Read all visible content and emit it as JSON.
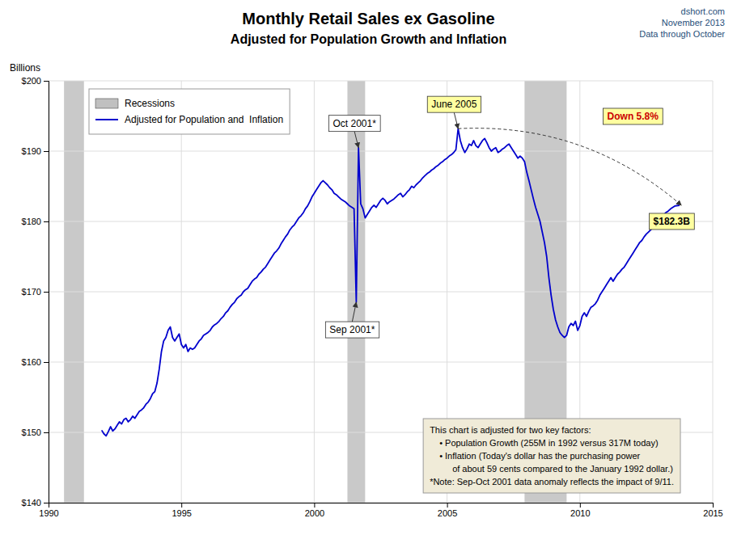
{
  "chart_data": {
    "type": "line",
    "title": "Monthly Retail Sales ex Gasoline",
    "subtitle": "Adjusted for Population Growth and Inflation",
    "y_label": "Billions",
    "source": [
      "dshort.com",
      "November 2013",
      "Data through October"
    ],
    "xlim": [
      1990,
      2015
    ],
    "ylim": [
      140,
      200
    ],
    "xticks": [
      1990,
      1995,
      2000,
      2005,
      2010,
      2015
    ],
    "yticks": [
      {
        "value": 140,
        "label": "$140"
      },
      {
        "value": 150,
        "label": "$150"
      },
      {
        "value": 160,
        "label": "$160"
      },
      {
        "value": 170,
        "label": "$170"
      },
      {
        "value": 180,
        "label": "$180"
      },
      {
        "value": 190,
        "label": "$190"
      },
      {
        "value": 200,
        "label": "$200"
      }
    ],
    "grid": true,
    "legend": "upper left",
    "recessions": {
      "name": "Recessions",
      "color": "#C0C0C0",
      "ranges": [
        [
          1990.583,
          1991.333
        ],
        [
          2001.25,
          2001.917
        ],
        [
          2007.917,
          2009.5
        ]
      ]
    },
    "x": [
      1992.0,
      1992.083,
      1992.167,
      1992.25,
      1992.333,
      1992.417,
      1992.5,
      1992.583,
      1992.667,
      1992.75,
      1992.833,
      1992.917,
      1993.0,
      1993.083,
      1993.167,
      1993.25,
      1993.333,
      1993.417,
      1993.5,
      1993.583,
      1993.667,
      1993.75,
      1993.833,
      1993.917,
      1994.0,
      1994.083,
      1994.167,
      1994.25,
      1994.333,
      1994.417,
      1994.5,
      1994.583,
      1994.667,
      1994.75,
      1994.833,
      1994.917,
      1995.0,
      1995.083,
      1995.167,
      1995.25,
      1995.333,
      1995.417,
      1995.5,
      1995.583,
      1995.667,
      1995.75,
      1995.833,
      1995.917,
      1996.0,
      1996.083,
      1996.167,
      1996.25,
      1996.333,
      1996.417,
      1996.5,
      1996.583,
      1996.667,
      1996.75,
      1996.833,
      1996.917,
      1997.0,
      1997.083,
      1997.167,
      1997.25,
      1997.333,
      1997.417,
      1997.5,
      1997.583,
      1997.667,
      1997.75,
      1997.833,
      1997.917,
      1998.0,
      1998.083,
      1998.167,
      1998.25,
      1998.333,
      1998.417,
      1998.5,
      1998.583,
      1998.667,
      1998.75,
      1998.833,
      1998.917,
      1999.0,
      1999.083,
      1999.167,
      1999.25,
      1999.333,
      1999.417,
      1999.5,
      1999.583,
      1999.667,
      1999.75,
      1999.833,
      1999.917,
      2000.0,
      2000.083,
      2000.167,
      2000.25,
      2000.333,
      2000.417,
      2000.5,
      2000.583,
      2000.667,
      2000.75,
      2000.833,
      2000.917,
      2001.0,
      2001.083,
      2001.167,
      2001.25,
      2001.333,
      2001.417,
      2001.5,
      2001.583,
      2001.667,
      2001.75,
      2001.833,
      2001.917,
      2002.0,
      2002.083,
      2002.167,
      2002.25,
      2002.333,
      2002.417,
      2002.5,
      2002.583,
      2002.667,
      2002.75,
      2002.833,
      2002.917,
      2003.0,
      2003.083,
      2003.167,
      2003.25,
      2003.333,
      2003.417,
      2003.5,
      2003.583,
      2003.667,
      2003.75,
      2003.833,
      2003.917,
      2004.0,
      2004.083,
      2004.167,
      2004.25,
      2004.333,
      2004.417,
      2004.5,
      2004.583,
      2004.667,
      2004.75,
      2004.833,
      2004.917,
      2005.0,
      2005.083,
      2005.167,
      2005.25,
      2005.333,
      2005.417,
      2005.5,
      2005.583,
      2005.667,
      2005.75,
      2005.833,
      2005.917,
      2006.0,
      2006.083,
      2006.167,
      2006.25,
      2006.333,
      2006.417,
      2006.5,
      2006.583,
      2006.667,
      2006.75,
      2006.833,
      2006.917,
      2007.0,
      2007.083,
      2007.167,
      2007.25,
      2007.333,
      2007.417,
      2007.5,
      2007.583,
      2007.667,
      2007.75,
      2007.833,
      2007.917,
      2008.0,
      2008.083,
      2008.167,
      2008.25,
      2008.333,
      2008.417,
      2008.5,
      2008.583,
      2008.667,
      2008.75,
      2008.833,
      2008.917,
      2009.0,
      2009.083,
      2009.167,
      2009.25,
      2009.333,
      2009.417,
      2009.5,
      2009.583,
      2009.667,
      2009.75,
      2009.833,
      2009.917,
      2010.0,
      2010.083,
      2010.167,
      2010.25,
      2010.333,
      2010.417,
      2010.5,
      2010.583,
      2010.667,
      2010.75,
      2010.833,
      2010.917,
      2011.0,
      2011.083,
      2011.167,
      2011.25,
      2011.333,
      2011.417,
      2011.5,
      2011.583,
      2011.667,
      2011.75,
      2011.833,
      2011.917,
      2012.0,
      2012.083,
      2012.167,
      2012.25,
      2012.333,
      2012.417,
      2012.5,
      2012.583,
      2012.667,
      2012.75,
      2012.833,
      2012.917,
      2013.0,
      2013.083,
      2013.167,
      2013.25,
      2013.333,
      2013.417,
      2013.5,
      2013.583,
      2013.75
    ],
    "series": [
      {
        "name": "Adjusted for Population and  Inflation",
        "color": "#0000CD",
        "values": [
          150.3,
          149.8,
          149.5,
          150.1,
          150.8,
          150.2,
          150.5,
          151.0,
          151.5,
          151.2,
          151.8,
          152.0,
          151.5,
          151.8,
          152.3,
          152.0,
          152.5,
          153.0,
          153.2,
          153.5,
          154.0,
          154.3,
          154.8,
          155.5,
          155.8,
          157.0,
          159.0,
          161.5,
          163.0,
          163.5,
          164.5,
          165.0,
          163.5,
          163.0,
          163.5,
          164.0,
          162.5,
          162.0,
          162.5,
          161.5,
          162.0,
          161.8,
          162.0,
          162.5,
          163.0,
          163.3,
          163.8,
          164.0,
          164.2,
          164.5,
          165.0,
          165.3,
          165.5,
          165.8,
          166.2,
          166.5,
          167.0,
          167.3,
          167.8,
          168.2,
          168.5,
          169.0,
          169.3,
          169.5,
          170.0,
          170.3,
          170.5,
          171.0,
          171.5,
          171.8,
          172.0,
          172.5,
          172.8,
          173.2,
          173.5,
          174.0,
          174.5,
          175.0,
          175.5,
          175.8,
          176.2,
          176.8,
          177.3,
          177.8,
          178.2,
          178.8,
          179.2,
          179.5,
          180.0,
          180.5,
          180.8,
          181.2,
          181.8,
          182.2,
          182.8,
          183.5,
          184.0,
          184.5,
          185.0,
          185.5,
          185.8,
          185.5,
          185.2,
          184.8,
          184.5,
          184.0,
          183.8,
          183.5,
          183.2,
          183.0,
          182.8,
          182.5,
          182.2,
          182.0,
          181.8,
          168.5,
          190.5,
          182.5,
          181.8,
          180.5,
          181.0,
          181.5,
          182.0,
          182.3,
          182.0,
          182.5,
          183.0,
          183.3,
          183.0,
          182.5,
          182.8,
          183.0,
          183.2,
          183.5,
          183.8,
          184.0,
          183.5,
          183.8,
          184.2,
          184.5,
          185.0,
          184.8,
          185.2,
          185.5,
          185.8,
          186.2,
          186.5,
          186.8,
          187.0,
          187.3,
          187.5,
          187.8,
          188.0,
          188.3,
          188.5,
          188.8,
          189.0,
          189.3,
          189.5,
          189.8,
          190.2,
          193.2,
          191.5,
          190.5,
          189.8,
          190.3,
          191.0,
          190.8,
          191.5,
          190.8,
          190.5,
          191.0,
          191.5,
          191.8,
          191.2,
          190.5,
          190.0,
          190.3,
          190.5,
          189.8,
          190.0,
          190.3,
          190.5,
          190.8,
          191.0,
          190.5,
          190.0,
          189.5,
          189.0,
          189.3,
          189.0,
          188.5,
          187.0,
          185.8,
          184.5,
          183.2,
          182.0,
          181.0,
          180.0,
          178.5,
          177.0,
          175.0,
          172.0,
          169.5,
          167.5,
          166.0,
          165.0,
          164.2,
          163.8,
          163.5,
          163.8,
          165.0,
          165.5,
          165.2,
          165.8,
          164.5,
          165.2,
          166.5,
          167.0,
          166.5,
          167.2,
          167.8,
          168.0,
          168.3,
          168.8,
          169.5,
          170.0,
          170.5,
          171.0,
          171.5,
          172.0,
          171.5,
          172.0,
          172.5,
          172.8,
          173.2,
          173.5,
          174.0,
          174.5,
          175.0,
          175.5,
          176.0,
          176.5,
          177.0,
          177.3,
          177.8,
          178.2,
          178.5,
          178.8,
          179.2,
          179.5,
          180.0,
          180.3,
          180.8,
          181.0,
          181.3,
          181.5,
          181.8,
          182.0,
          182.2,
          182.3
        ]
      }
    ],
    "annotations": [
      {
        "text": "June 2005",
        "x": 2005.417,
        "y": 193.2
      },
      {
        "text": "Oct 2001*",
        "x": 2001.667,
        "y": 190.5
      },
      {
        "text": "Sep 2001*",
        "x": 2001.583,
        "y": 168.5
      },
      {
        "text": "Down 5.8%",
        "color": "#CC0000"
      },
      {
        "text": "$182.3B",
        "x": 2013.82,
        "y": 182.3
      }
    ],
    "note": [
      "This chart is adjusted for two key factors:",
      "• Population Growth (255M in 1992 versus 317M today)",
      "• Inflation (Today's dollar has the purchasing power",
      "of about 59 cents compared to the January 1992 dollar.)",
      "*Note: Sep-Oct 2001 data anomaly reflects the impact of 9/11."
    ]
  }
}
